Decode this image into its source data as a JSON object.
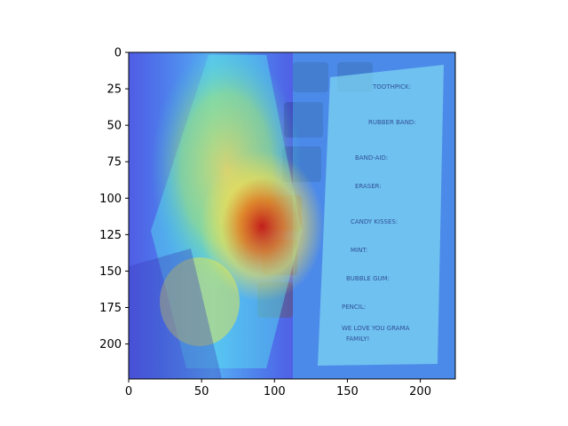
{
  "figure": {
    "kind": "image with heatmap overlay",
    "x_ticks": [
      "0",
      "50",
      "100",
      "150",
      "200"
    ],
    "y_ticks": [
      "0",
      "25",
      "50",
      "75",
      "100",
      "125",
      "150",
      "175",
      "200"
    ],
    "x_range": [
      0,
      224
    ],
    "y_range": [
      0,
      224
    ],
    "colormap": "jet",
    "background": "#ffffff"
  },
  "image_content": {
    "subject": "photo of a candy bag and a printed note on a keyboard",
    "note_lines": [
      "TOOTHPICK:",
      "RUBBER BAND:",
      "BAND-AID:",
      "ERASER:",
      "CANDY KISSES:",
      "MINT:",
      "BUBBLE GUM:",
      "PENCIL:",
      "WE LOVE YOU GRAMA",
      "FAMILY!"
    ]
  }
}
